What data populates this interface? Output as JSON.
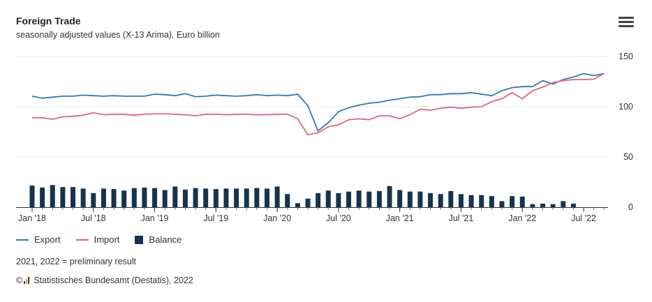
{
  "header": {
    "title": "Foreign Trade",
    "subtitle": "seasonally adjusted values (X-13 Arima), Euro billion"
  },
  "menu_icon": "hamburger-menu-icon",
  "colors": {
    "export": "#2e7ab8",
    "import": "#e0667a",
    "balance": "#14344f",
    "grid": "#e8e8e8",
    "axis": "#333333"
  },
  "legend": {
    "export": "Export",
    "import": "Import",
    "balance": "Balance"
  },
  "footnote": "2021, 2022 = preliminary result",
  "source": {
    "copyright": "©",
    "text": "Statistisches Bundesamt (Destatis), 2022"
  },
  "chart_data": {
    "type": "line",
    "title": "Foreign Trade",
    "subtitle": "seasonally adjusted values (X-13 Arima), Euro billion",
    "ylim": [
      0,
      150
    ],
    "yticks": [
      0,
      50,
      100,
      150
    ],
    "y_axis_side": "right",
    "grid": true,
    "legend_position": "bottom-left",
    "x_tick_labels": [
      "Jan '18",
      "Jul '18",
      "Jan '19",
      "Jul '19",
      "Jan '20",
      "Jul '20",
      "Jan '21",
      "Jul '21",
      "Jan '22",
      "Jul '22"
    ],
    "x_tick_every_months": 6,
    "x_start": "Jan 2018",
    "x_end": "Sep 2022",
    "series": [
      {
        "name": "Export",
        "type": "line",
        "values": [
          110.5,
          108.5,
          109.5,
          110.5,
          110.5,
          111.5,
          111,
          110.5,
          111,
          110.5,
          110.5,
          110.5,
          112.5,
          112,
          111,
          113,
          110,
          110.5,
          111.5,
          111,
          110.5,
          111,
          112,
          111,
          111.5,
          111,
          112.5,
          101,
          76,
          84,
          95,
          99,
          101.5,
          103.5,
          104.5,
          106.5,
          108,
          109.5,
          110,
          112,
          112,
          113,
          113,
          114,
          112.5,
          111,
          116,
          119,
          120,
          120,
          126,
          122.5,
          127,
          129.5,
          133,
          131,
          133
        ]
      },
      {
        "name": "Import",
        "type": "line",
        "values": [
          89,
          89,
          87.5,
          90,
          90.5,
          91.5,
          94,
          92,
          92.5,
          92.5,
          91.5,
          92.5,
          93,
          93,
          92.5,
          92,
          91,
          92.5,
          92.5,
          92,
          92.5,
          92.5,
          92,
          92,
          92.5,
          92.5,
          88,
          72,
          74,
          80,
          82,
          87,
          88,
          87,
          91,
          91,
          88,
          92,
          97.5,
          96.5,
          98.5,
          99.5,
          98.5,
          99.5,
          100,
          105,
          108,
          114,
          108,
          116,
          119.5,
          124,
          126,
          127,
          127,
          127.5,
          133
        ]
      },
      {
        "name": "Balance",
        "type": "bar",
        "values": [
          21.5,
          19.5,
          22,
          20,
          20,
          18.5,
          14,
          18.5,
          18,
          16.5,
          19,
          19.5,
          19,
          17,
          20.5,
          17.5,
          19,
          18.5,
          18,
          18.5,
          18.5,
          18.5,
          19,
          18.5,
          20.5,
          13,
          4,
          8.5,
          14,
          16.5,
          14,
          15.5,
          16.5,
          15.5,
          16,
          21,
          17,
          15.5,
          15.5,
          14,
          13,
          16,
          13,
          12,
          12,
          11,
          6,
          11,
          10.5,
          3,
          3.5,
          3,
          6,
          3.5,
          0,
          0,
          0
        ]
      }
    ]
  }
}
